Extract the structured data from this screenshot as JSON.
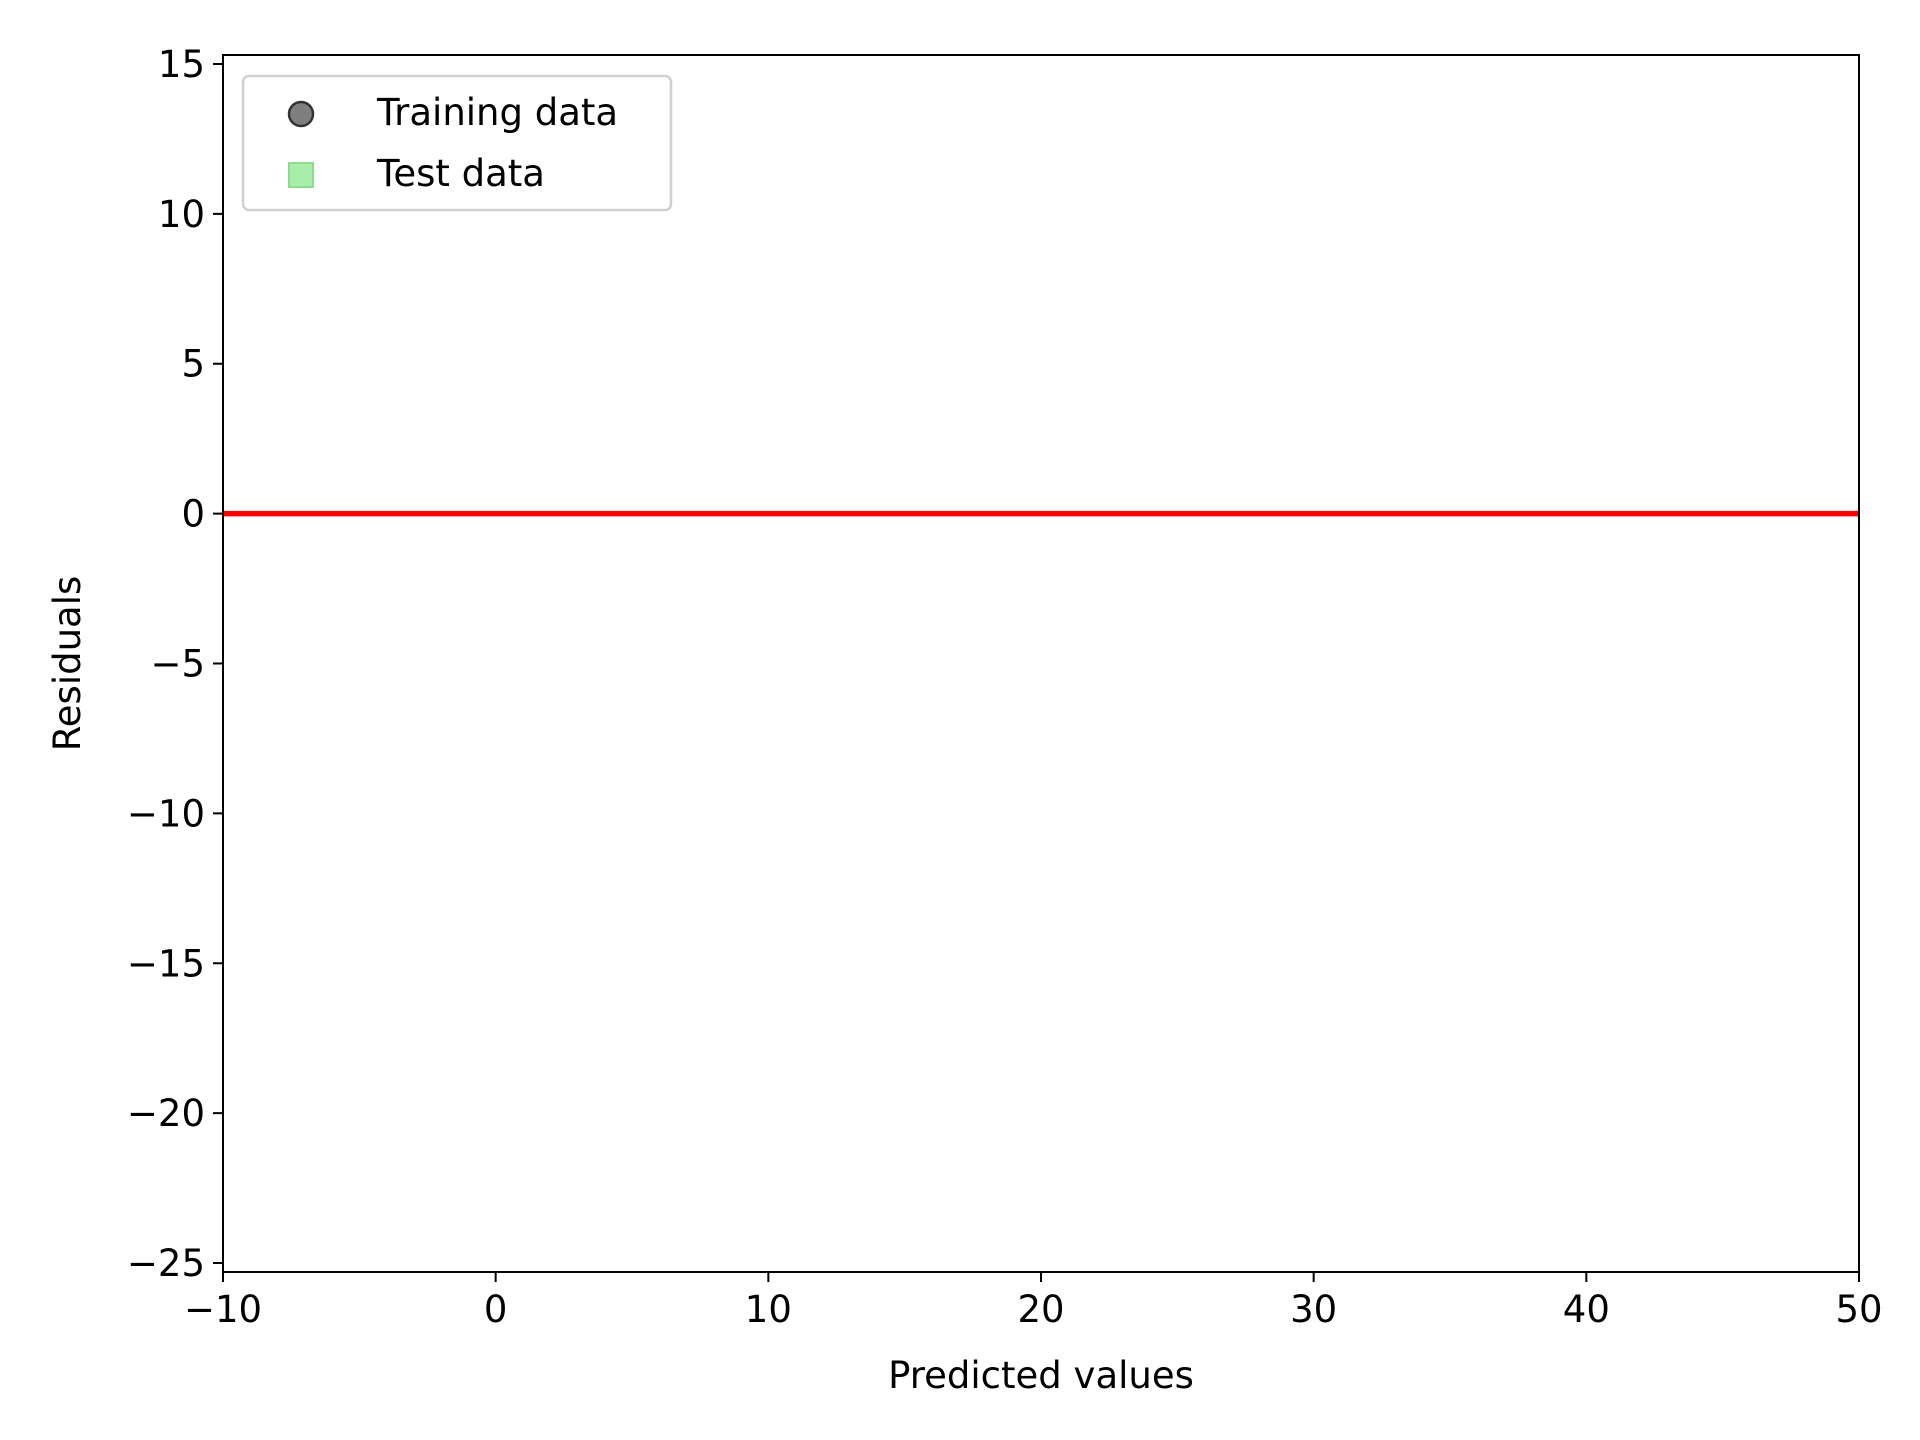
{
  "chart_data": {
    "type": "scatter",
    "title": "",
    "xlabel": "Predicted values",
    "ylabel": "Residuals",
    "xlim": [
      -10,
      50
    ],
    "ylim": [
      -25.3,
      15.3
    ],
    "x_ticks": [
      -10,
      0,
      10,
      20,
      30,
      40,
      50
    ],
    "x_tick_labels": [
      "−10",
      "0",
      "10",
      "20",
      "30",
      "40",
      "50"
    ],
    "y_ticks": [
      15,
      10,
      5,
      0,
      -5,
      -10,
      -15,
      -20,
      -25
    ],
    "y_tick_labels": [
      "15",
      "10",
      "5",
      "0",
      "−5",
      "−10",
      "−15",
      "−20",
      "−25"
    ],
    "grid": false,
    "legend_position": "upper-left",
    "series": [
      {
        "name": "Training data",
        "marker": "circle",
        "color": "#7f7f7f",
        "edge_color": "#333333",
        "points": []
      },
      {
        "name": "Test data",
        "marker": "square",
        "color": "#a8eea8",
        "edge_color": "#8edb8e",
        "points": []
      }
    ],
    "reference_line": {
      "y": 0,
      "x_range": [
        -10,
        50
      ],
      "color": "#ff0000"
    }
  }
}
